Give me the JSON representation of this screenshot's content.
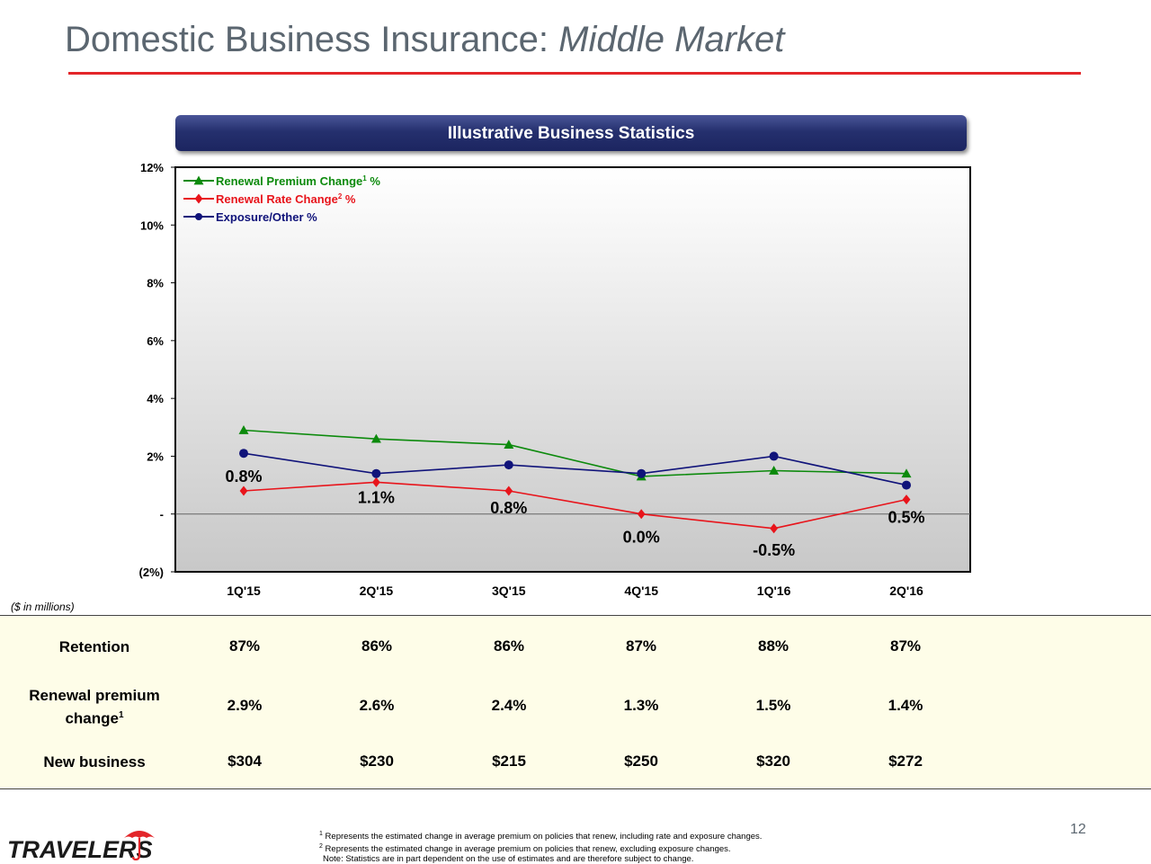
{
  "title": {
    "main": "Domestic Business Insurance: ",
    "italic": "Middle Market"
  },
  "banner": "Illustrative Business Statistics",
  "colors": {
    "title": "#5b6670",
    "accent_red": "#e3262a",
    "banner": "#25306e",
    "premium": "#0c8a0c",
    "rate": "#e8141b",
    "exposure": "#10137a"
  },
  "chart_data": {
    "type": "line",
    "categories": [
      "1Q'15",
      "2Q'15",
      "3Q'15",
      "4Q'15",
      "1Q'16",
      "2Q'16"
    ],
    "series": [
      {
        "name": "Renewal Premium Change",
        "sup": "1",
        "suffix": " %",
        "marker": "triangle",
        "color": "#0c8a0c",
        "values": [
          2.9,
          2.6,
          2.4,
          1.3,
          1.5,
          1.4
        ]
      },
      {
        "name": "Renewal Rate Change",
        "sup": "2",
        "suffix": " %",
        "marker": "diamond",
        "color": "#e8141b",
        "values": [
          0.8,
          1.1,
          0.8,
          0.0,
          -0.5,
          0.5
        ]
      },
      {
        "name": "Exposure/Other %",
        "sup": "",
        "suffix": "",
        "marker": "circle",
        "color": "#10137a",
        "values": [
          2.1,
          1.4,
          1.7,
          1.4,
          2.0,
          1.0
        ]
      }
    ],
    "data_labels": [
      "0.8%",
      "1.1%",
      "0.8%",
      "0.0%",
      "-0.5%",
      "0.5%"
    ],
    "ylim": [
      -2,
      12
    ],
    "yticks": [
      {
        "v": 12,
        "label": "12%"
      },
      {
        "v": 10,
        "label": "10%"
      },
      {
        "v": 8,
        "label": "8%"
      },
      {
        "v": 6,
        "label": "6%"
      },
      {
        "v": 4,
        "label": "4%"
      },
      {
        "v": 2,
        "label": "2%"
      },
      {
        "v": 0,
        "label": "-"
      },
      {
        "v": -2,
        "label": "(2%)"
      }
    ],
    "legend_position": "top-left"
  },
  "units_note": "($ in millions)",
  "table": {
    "rows": [
      {
        "label": "Retention",
        "sup": "",
        "values": [
          "87%",
          "86%",
          "86%",
          "87%",
          "88%",
          "87%"
        ]
      },
      {
        "label": "Renewal premium change",
        "label_line1": "Renewal premium",
        "label_line2": "change",
        "sup": "1",
        "values": [
          "2.9%",
          "2.6%",
          "2.4%",
          "1.3%",
          "1.5%",
          "1.4%"
        ]
      },
      {
        "label": "New business",
        "sup": "",
        "values": [
          "$304",
          "$230",
          "$215",
          "$250",
          "$320",
          "$272"
        ]
      }
    ]
  },
  "footnotes": [
    "Represents the estimated change in average premium on policies that renew, including rate and exposure changes.",
    "Represents the estimated change in average premium on policies that renew, excluding exposure changes.",
    "Note: Statistics are in part dependent on the use of estimates and are therefore subject to change."
  ],
  "page_number": "12",
  "logo_text": "TRAVELERS",
  "logo_icon": "umbrella-icon"
}
